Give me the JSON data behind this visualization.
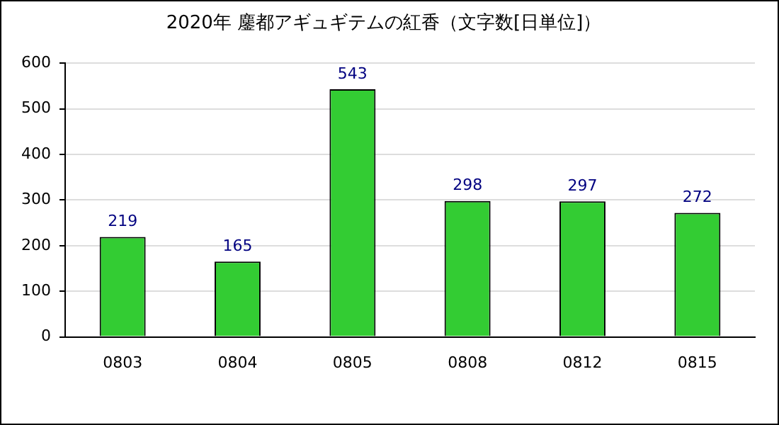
{
  "chart_data": {
    "type": "bar",
    "title": "2020年 鏖都アギュギテムの紅香（文字数[日単位]）",
    "categories": [
      "0803",
      "0804",
      "0805",
      "0808",
      "0812",
      "0815"
    ],
    "values": [
      219,
      165,
      543,
      298,
      297,
      272
    ],
    "color": "#33cc33",
    "ylim": [
      0,
      600
    ],
    "yticks": [
      0,
      100,
      200,
      300,
      400,
      500,
      600
    ],
    "grid": "y",
    "data_labels": true
  }
}
